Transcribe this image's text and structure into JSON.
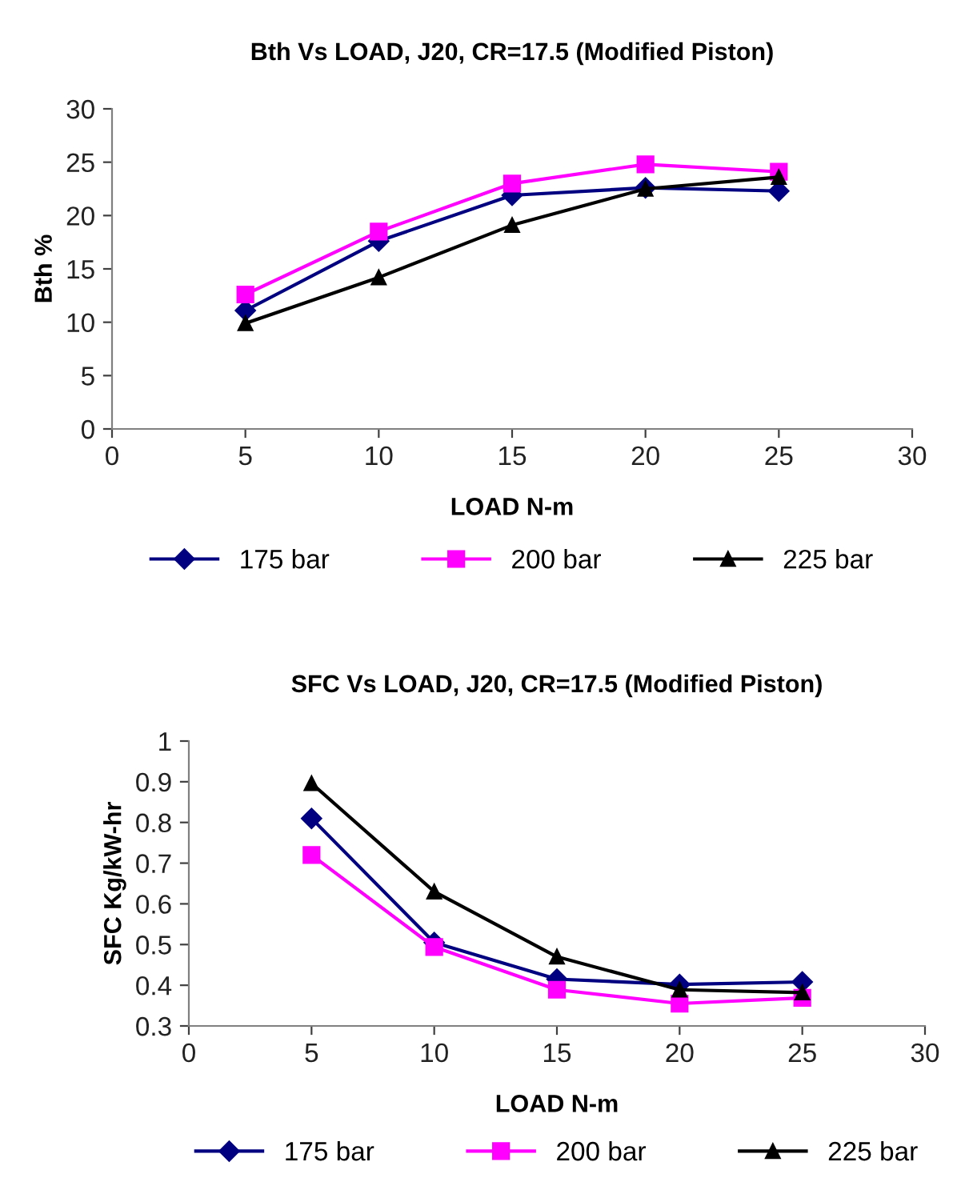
{
  "chart_data": [
    {
      "type": "line",
      "title": "Bth Vs LOAD, J20, CR=17.5 (Modified Piston)",
      "xlabel": "LOAD N-m",
      "ylabel": "Bth %",
      "x": [
        5,
        10,
        15,
        20,
        25
      ],
      "xlim": [
        0,
        30
      ],
      "xticks": [
        0,
        5,
        10,
        15,
        20,
        25,
        30
      ],
      "ylim": [
        0,
        30
      ],
      "yticks": [
        0,
        5,
        10,
        15,
        20,
        25,
        30
      ],
      "grid": false,
      "legend": "bottom",
      "line_style": "solid",
      "series": [
        {
          "name": "175 bar",
          "color": "#000080",
          "marker": "diamond",
          "values": [
            11.1,
            17.6,
            21.9,
            22.6,
            22.3
          ]
        },
        {
          "name": "200 bar",
          "color": "#ff00ff",
          "marker": "square",
          "values": [
            12.6,
            18.5,
            23.0,
            24.8,
            24.1
          ]
        },
        {
          "name": "225 bar",
          "color": "#000000",
          "marker": "triangle",
          "values": [
            9.9,
            14.2,
            19.1,
            22.5,
            23.6
          ]
        }
      ]
    },
    {
      "type": "line",
      "title": "SFC Vs LOAD, J20, CR=17.5 (Modified Piston)",
      "xlabel": "LOAD N-m",
      "ylabel": "SFC Kg/kW-hr",
      "x": [
        5,
        10,
        15,
        20,
        25
      ],
      "xlim": [
        0,
        30
      ],
      "xticks": [
        0,
        5,
        10,
        15,
        20,
        25,
        30
      ],
      "ylim": [
        0.3,
        1
      ],
      "yticks": [
        0.3,
        0.4,
        0.5,
        0.6,
        0.7,
        0.8,
        0.9,
        1
      ],
      "grid": false,
      "legend": "bottom",
      "line_style": "solid",
      "series": [
        {
          "name": "175 bar",
          "color": "#000080",
          "marker": "diamond",
          "values": [
            0.81,
            0.505,
            0.415,
            0.402,
            0.408
          ]
        },
        {
          "name": "200 bar",
          "color": "#ff00ff",
          "marker": "square",
          "values": [
            0.72,
            0.494,
            0.389,
            0.355,
            0.369
          ]
        },
        {
          "name": "225 bar",
          "color": "#000000",
          "marker": "triangle",
          "values": [
            0.896,
            0.63,
            0.47,
            0.389,
            0.382
          ]
        }
      ]
    }
  ]
}
